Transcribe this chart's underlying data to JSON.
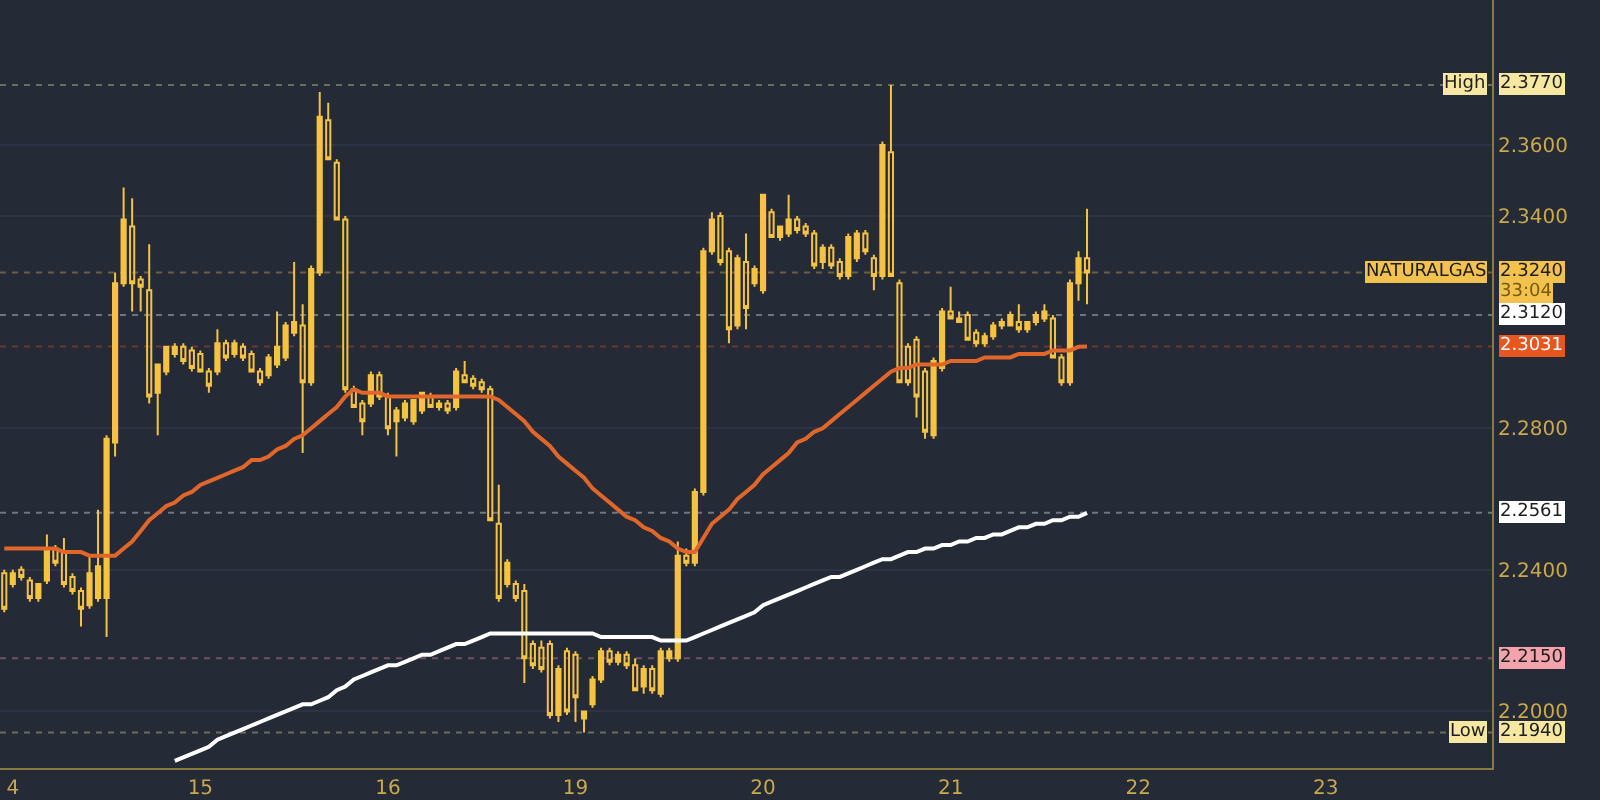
{
  "chart_data": {
    "type": "candlestick",
    "color": "#f5c242",
    "categories": [
      null,
      "4",
      null,
      null,
      null,
      null,
      null,
      null,
      null,
      null,
      null,
      null,
      null,
      null,
      null,
      null,
      null,
      null,
      null,
      null,
      null,
      null,
      null,
      "15",
      null,
      null,
      null,
      null,
      null,
      null,
      null,
      null,
      null,
      null,
      null,
      null,
      null,
      null,
      null,
      null,
      null,
      null,
      null,
      null,
      null,
      "16",
      null,
      null,
      null,
      null,
      null,
      null,
      null,
      null,
      null,
      null,
      null,
      null,
      null,
      null,
      null,
      null,
      null,
      null,
      null,
      null,
      null,
      "19",
      null,
      null,
      null,
      null,
      null,
      null,
      null,
      null,
      null,
      null,
      null,
      null,
      null,
      null,
      null,
      null,
      null,
      null,
      null,
      null,
      null,
      "20",
      null,
      null,
      null,
      null,
      null,
      null,
      null,
      null,
      null,
      null,
      null,
      null,
      null,
      null,
      null,
      null,
      null,
      null,
      null,
      null,
      null,
      "21",
      null,
      null,
      null,
      null,
      null,
      null,
      null,
      null,
      null,
      null,
      null,
      null,
      null,
      null,
      null,
      null,
      null,
      null,
      null,
      null,
      null,
      "22",
      null,
      null,
      null,
      null,
      null,
      null,
      null,
      null,
      null,
      null,
      null,
      null,
      null,
      null,
      null,
      null,
      null,
      null,
      null,
      null,
      null,
      "23",
      null,
      null,
      null,
      null,
      null,
      null,
      null,
      null,
      null,
      null,
      null,
      null,
      null,
      null,
      null,
      null,
      null,
      null,
      null
    ],
    "ohlc": [
      [
        2.239,
        2.24,
        2.228,
        2.229
      ],
      [
        2.236,
        2.24,
        2.235,
        2.239
      ],
      [
        2.24,
        2.241,
        2.237,
        2.238
      ],
      [
        2.237,
        2.238,
        2.231,
        2.232
      ],
      [
        2.232,
        2.236,
        2.231,
        2.236
      ],
      [
        2.237,
        2.25,
        2.236,
        2.246
      ],
      [
        2.246,
        2.247,
        2.241,
        2.242
      ],
      [
        2.245,
        2.249,
        2.235,
        2.236
      ],
      [
        2.238,
        2.239,
        2.233,
        2.234
      ],
      [
        2.234,
        2.235,
        2.224,
        2.229
      ],
      [
        2.23,
        2.244,
        2.229,
        2.239
      ],
      [
        2.232,
        2.257,
        2.231,
        2.241
      ],
      [
        2.232,
        2.278,
        2.221,
        2.277
      ],
      [
        2.276,
        2.324,
        2.272,
        2.321
      ],
      [
        2.321,
        2.348,
        2.32,
        2.339
      ],
      [
        2.337,
        2.345,
        2.313,
        2.321
      ],
      [
        2.322,
        2.323,
        2.313,
        2.32
      ],
      [
        2.319,
        2.332,
        2.287,
        2.289
      ],
      [
        2.29,
        2.298,
        2.278,
        2.298
      ],
      [
        2.296,
        2.303,
        2.295,
        2.303
      ],
      [
        2.301,
        2.304,
        2.3,
        2.303
      ],
      [
        2.303,
        2.304,
        2.298,
        2.299
      ],
      [
        2.302,
        2.303,
        2.296,
        2.297
      ],
      [
        2.301,
        2.302,
        2.296,
        2.296
      ],
      [
        2.296,
        2.297,
        2.29,
        2.292
      ],
      [
        2.296,
        2.308,
        2.295,
        2.304
      ],
      [
        2.304,
        2.305,
        2.299,
        2.3
      ],
      [
        2.301,
        2.305,
        2.3,
        2.304
      ],
      [
        2.303,
        2.304,
        2.299,
        2.3
      ],
      [
        2.301,
        2.302,
        2.296,
        2.296
      ],
      [
        2.296,
        2.297,
        2.292,
        2.293
      ],
      [
        2.295,
        2.301,
        2.294,
        2.3
      ],
      [
        2.298,
        2.313,
        2.297,
        2.303
      ],
      [
        2.3,
        2.31,
        2.299,
        2.309
      ],
      [
        2.307,
        2.327,
        2.306,
        2.31
      ],
      [
        2.309,
        2.315,
        2.273,
        2.293
      ],
      [
        2.293,
        2.326,
        2.292,
        2.325
      ],
      [
        2.324,
        2.375,
        2.323,
        2.368
      ],
      [
        2.367,
        2.372,
        2.356,
        2.356
      ],
      [
        2.355,
        2.356,
        2.339,
        2.339
      ],
      [
        2.339,
        2.34,
        2.29,
        2.291
      ],
      [
        2.291,
        2.292,
        2.286,
        2.286
      ],
      [
        2.287,
        2.288,
        2.278,
        2.282
      ],
      [
        2.287,
        2.296,
        2.286,
        2.295
      ],
      [
        2.295,
        2.296,
        2.288,
        2.289
      ],
      [
        2.289,
        2.29,
        2.278,
        2.28
      ],
      [
        2.282,
        2.286,
        2.272,
        2.285
      ],
      [
        2.283,
        2.288,
        2.282,
        2.287
      ],
      [
        2.282,
        2.288,
        2.281,
        2.288
      ],
      [
        2.285,
        2.29,
        2.284,
        2.29
      ],
      [
        2.289,
        2.29,
        2.286,
        2.286
      ],
      [
        2.286,
        2.288,
        2.285,
        2.287
      ],
      [
        2.287,
        2.288,
        2.284,
        2.285
      ],
      [
        2.286,
        2.297,
        2.285,
        2.296
      ],
      [
        2.295,
        2.299,
        2.293,
        2.293
      ],
      [
        2.294,
        2.295,
        2.291,
        2.292
      ],
      [
        2.293,
        2.294,
        2.29,
        2.291
      ],
      [
        2.291,
        2.292,
        2.254,
        2.254
      ],
      [
        2.253,
        2.264,
        2.231,
        2.232
      ],
      [
        2.236,
        2.243,
        2.235,
        2.242
      ],
      [
        2.236,
        2.237,
        2.231,
        2.232
      ],
      [
        2.234,
        2.236,
        2.208,
        2.215
      ],
      [
        2.219,
        2.22,
        2.212,
        2.213
      ],
      [
        2.218,
        2.22,
        2.211,
        2.212
      ],
      [
        2.219,
        2.22,
        2.198,
        2.199
      ],
      [
        2.199,
        2.213,
        2.197,
        2.212
      ],
      [
        2.217,
        2.218,
        2.199,
        2.2
      ],
      [
        2.216,
        2.217,
        2.197,
        2.204
      ],
      [
        2.198,
        2.2,
        2.194,
        2.2
      ],
      [
        2.202,
        2.21,
        2.201,
        2.209
      ],
      [
        2.209,
        2.218,
        2.208,
        2.217
      ],
      [
        2.217,
        2.218,
        2.213,
        2.214
      ],
      [
        2.214,
        2.217,
        2.213,
        2.216
      ],
      [
        2.216,
        2.217,
        2.212,
        2.213
      ],
      [
        2.213,
        2.215,
        2.206,
        2.206
      ],
      [
        2.207,
        2.213,
        2.205,
        2.212
      ],
      [
        2.212,
        2.213,
        2.205,
        2.206
      ],
      [
        2.205,
        2.218,
        2.204,
        2.217
      ],
      [
        2.215,
        2.218,
        2.214,
        2.217
      ],
      [
        2.215,
        2.248,
        2.214,
        2.244
      ],
      [
        2.244,
        2.246,
        2.241,
        2.242
      ],
      [
        2.242,
        2.263,
        2.241,
        2.262
      ],
      [
        2.262,
        2.331,
        2.261,
        2.33
      ],
      [
        2.33,
        2.341,
        2.329,
        2.339
      ],
      [
        2.34,
        2.341,
        2.326,
        2.327
      ],
      [
        2.33,
        2.331,
        2.304,
        2.308
      ],
      [
        2.309,
        2.329,
        2.308,
        2.328
      ],
      [
        2.327,
        2.335,
        2.308,
        2.314
      ],
      [
        2.321,
        2.326,
        2.32,
        2.325
      ],
      [
        2.319,
        2.346,
        2.318,
        2.346
      ],
      [
        2.341,
        2.342,
        2.334,
        2.334
      ],
      [
        2.334,
        2.337,
        2.333,
        2.337
      ],
      [
        2.335,
        2.346,
        2.334,
        2.339
      ],
      [
        2.339,
        2.34,
        2.335,
        2.336
      ],
      [
        2.337,
        2.338,
        2.334,
        2.335
      ],
      [
        2.335,
        2.336,
        2.325,
        2.326
      ],
      [
        2.327,
        2.332,
        2.325,
        2.331
      ],
      [
        2.331,
        2.332,
        2.325,
        2.326
      ],
      [
        2.327,
        2.328,
        2.322,
        2.323
      ],
      [
        2.323,
        2.335,
        2.322,
        2.334
      ],
      [
        2.328,
        2.336,
        2.327,
        2.335
      ],
      [
        2.335,
        2.336,
        2.329,
        2.33
      ],
      [
        2.328,
        2.329,
        2.319,
        2.323
      ],
      [
        2.323,
        2.361,
        2.322,
        2.36
      ],
      [
        2.358,
        2.377,
        2.323,
        2.323
      ],
      [
        2.321,
        2.322,
        2.293,
        2.293
      ],
      [
        2.303,
        2.304,
        2.292,
        2.293
      ],
      [
        2.305,
        2.306,
        2.283,
        2.289
      ],
      [
        2.296,
        2.297,
        2.277,
        2.279
      ],
      [
        2.278,
        2.3,
        2.277,
        2.299
      ],
      [
        2.297,
        2.314,
        2.296,
        2.313
      ],
      [
        2.313,
        2.32,
        2.311,
        2.311
      ],
      [
        2.311,
        2.313,
        2.31,
        2.31
      ],
      [
        2.312,
        2.313,
        2.305,
        2.305
      ],
      [
        2.307,
        2.308,
        2.303,
        2.304
      ],
      [
        2.304,
        2.307,
        2.303,
        2.306
      ],
      [
        2.306,
        2.31,
        2.305,
        2.309
      ],
      [
        2.309,
        2.311,
        2.308,
        2.31
      ],
      [
        2.309,
        2.313,
        2.309,
        2.312
      ],
      [
        2.31,
        2.315,
        2.307,
        2.308
      ],
      [
        2.308,
        2.31,
        2.307,
        2.31
      ],
      [
        2.31,
        2.313,
        2.309,
        2.312
      ],
      [
        2.311,
        2.315,
        2.31,
        2.313
      ],
      [
        2.311,
        2.312,
        2.3,
        2.3
      ],
      [
        2.3,
        2.301,
        2.292,
        2.293
      ],
      [
        2.293,
        2.322,
        2.292,
        2.321
      ],
      [
        2.321,
        2.33,
        2.316,
        2.328
      ],
      [
        2.328,
        2.342,
        2.315,
        2.324
      ],
      null,
      null,
      null,
      null,
      null,
      null,
      null,
      null,
      null,
      null,
      null,
      null,
      null,
      null,
      null,
      null,
      null,
      null,
      null,
      null,
      null,
      null,
      null,
      null,
      null,
      null,
      null,
      null,
      null,
      null,
      null,
      null,
      null,
      null,
      null,
      null,
      null,
      null,
      null,
      null,
      null,
      null,
      null,
      null,
      null,
      null,
      null
    ],
    "series": [
      {
        "type": "line",
        "color": "#e0662a",
        "values": [
          2.246,
          2.246,
          2.246,
          2.246,
          2.246,
          2.246,
          2.246,
          2.245,
          2.245,
          2.245,
          2.244,
          2.244,
          2.244,
          2.244,
          2.246,
          2.248,
          2.251,
          2.254,
          2.256,
          2.258,
          2.259,
          2.261,
          2.262,
          2.264,
          2.265,
          2.266,
          2.267,
          2.268,
          2.269,
          2.271,
          2.271,
          2.272,
          2.274,
          2.275,
          2.277,
          2.278,
          2.28,
          2.282,
          2.284,
          2.286,
          2.289,
          2.291,
          2.29,
          2.29,
          2.29,
          2.289,
          2.289,
          2.289,
          2.289,
          2.289,
          2.289,
          2.289,
          2.289,
          2.289,
          2.289,
          2.289,
          2.289,
          2.289,
          2.288,
          2.286,
          2.284,
          2.282,
          2.279,
          2.277,
          2.275,
          2.272,
          2.27,
          2.268,
          2.266,
          2.263,
          2.261,
          2.259,
          2.257,
          2.255,
          2.254,
          2.252,
          2.251,
          2.249,
          2.248,
          2.246,
          2.245,
          2.245,
          2.249,
          2.253,
          2.255,
          2.257,
          2.26,
          2.262,
          2.264,
          2.267,
          2.269,
          2.271,
          2.273,
          2.276,
          2.277,
          2.279,
          2.28,
          2.282,
          2.284,
          2.286,
          2.288,
          2.29,
          2.292,
          2.294,
          2.296,
          2.297,
          2.297,
          2.298,
          2.298,
          2.298,
          2.298,
          2.299,
          2.299,
          2.299,
          2.299,
          2.3,
          2.3,
          2.3,
          2.3,
          2.301,
          2.301,
          2.301,
          2.301,
          2.302,
          2.302,
          2.302,
          2.303,
          2.3031,
          null,
          null,
          null,
          null,
          null,
          null,
          null,
          null,
          null,
          null,
          null,
          null,
          null,
          null,
          null,
          null,
          null,
          null,
          null,
          null,
          null,
          null,
          null,
          null,
          null,
          null,
          null,
          null,
          null,
          null,
          null,
          null,
          null,
          null,
          null,
          null,
          null,
          null,
          null,
          null,
          null,
          null,
          null,
          null,
          null,
          null,
          null
        ]
      },
      {
        "type": "line",
        "color": "#ffffff",
        "values": [
          null,
          null,
          null,
          null,
          null,
          null,
          null,
          null,
          null,
          null,
          null,
          null,
          null,
          null,
          null,
          null,
          null,
          null,
          null,
          null,
          2.186,
          2.187,
          2.188,
          2.189,
          2.19,
          2.192,
          2.193,
          2.194,
          2.195,
          2.196,
          2.197,
          2.198,
          2.199,
          2.2,
          2.201,
          2.202,
          2.202,
          2.203,
          2.204,
          2.206,
          2.207,
          2.209,
          2.21,
          2.211,
          2.212,
          2.213,
          2.213,
          2.214,
          2.215,
          2.216,
          2.216,
          2.217,
          2.218,
          2.219,
          2.219,
          2.22,
          2.221,
          2.222,
          2.222,
          2.222,
          2.222,
          2.222,
          2.222,
          2.222,
          2.222,
          2.222,
          2.222,
          2.222,
          2.222,
          2.222,
          2.221,
          2.221,
          2.221,
          2.221,
          2.221,
          2.221,
          2.221,
          2.22,
          2.22,
          2.22,
          2.22,
          2.221,
          2.222,
          2.223,
          2.224,
          2.225,
          2.226,
          2.227,
          2.228,
          2.23,
          2.231,
          2.232,
          2.233,
          2.234,
          2.235,
          2.236,
          2.237,
          2.238,
          2.238,
          2.239,
          2.24,
          2.241,
          2.242,
          2.243,
          2.243,
          2.244,
          2.245,
          2.245,
          2.246,
          2.246,
          2.247,
          2.247,
          2.248,
          2.248,
          2.249,
          2.249,
          2.25,
          2.25,
          2.251,
          2.252,
          2.252,
          2.253,
          2.253,
          2.254,
          2.254,
          2.255,
          2.255,
          2.2561,
          null,
          null,
          null,
          null,
          null,
          null,
          null,
          null,
          null,
          null,
          null,
          null,
          null,
          null,
          null,
          null,
          null,
          null,
          null,
          null,
          null,
          null,
          null,
          null,
          null,
          null,
          null,
          null,
          null,
          null,
          null,
          null,
          null,
          null,
          null,
          null,
          null,
          null,
          null,
          null,
          null,
          null,
          null,
          null,
          null,
          null,
          null
        ]
      }
    ],
    "ylim": [
      2.184,
      2.401
    ],
    "yticks": [
      {
        "value": 2.2,
        "label": "2.2000"
      },
      {
        "value": 2.24,
        "label": "2.2400"
      },
      {
        "value": 2.28,
        "label": "2.2800"
      },
      {
        "value": 2.34,
        "label": "2.3400"
      },
      {
        "value": 2.36,
        "label": "2.3600"
      }
    ],
    "grid": "y",
    "ref_lines": [
      {
        "axis": "y",
        "value": 2.377,
        "label": "2.3770",
        "color": "#f6e7a1",
        "line_style": "dotted"
      },
      {
        "axis": "y",
        "value": 2.324,
        "label": "2.3240",
        "color": "#f2c14e",
        "line_style": "dotted"
      },
      {
        "axis": "y",
        "value": 2.312,
        "label": "2.3120",
        "color": "#ffffff",
        "line_style": "dotted"
      },
      {
        "axis": "y",
        "value": 2.3031,
        "label": "2.3031",
        "color": "#e8561f",
        "line_style": "dotted"
      },
      {
        "axis": "y",
        "value": 2.2561,
        "label": "2.2561",
        "color": "#ffffff",
        "line_style": "dotted"
      },
      {
        "axis": "y",
        "value": 2.215,
        "label": "2.2150",
        "color": "#f2a3ab",
        "line_style": "dotted"
      },
      {
        "axis": "y",
        "value": 2.194,
        "label": "2.1940",
        "color": "#f6e7a1",
        "line_style": "dotted"
      }
    ],
    "annotations": [
      {
        "text": "High",
        "y": 2.377
      },
      {
        "text": "NATURALGAS",
        "y": 2.324
      },
      {
        "text": "Low",
        "y": 2.194
      },
      "33:04"
    ]
  }
}
